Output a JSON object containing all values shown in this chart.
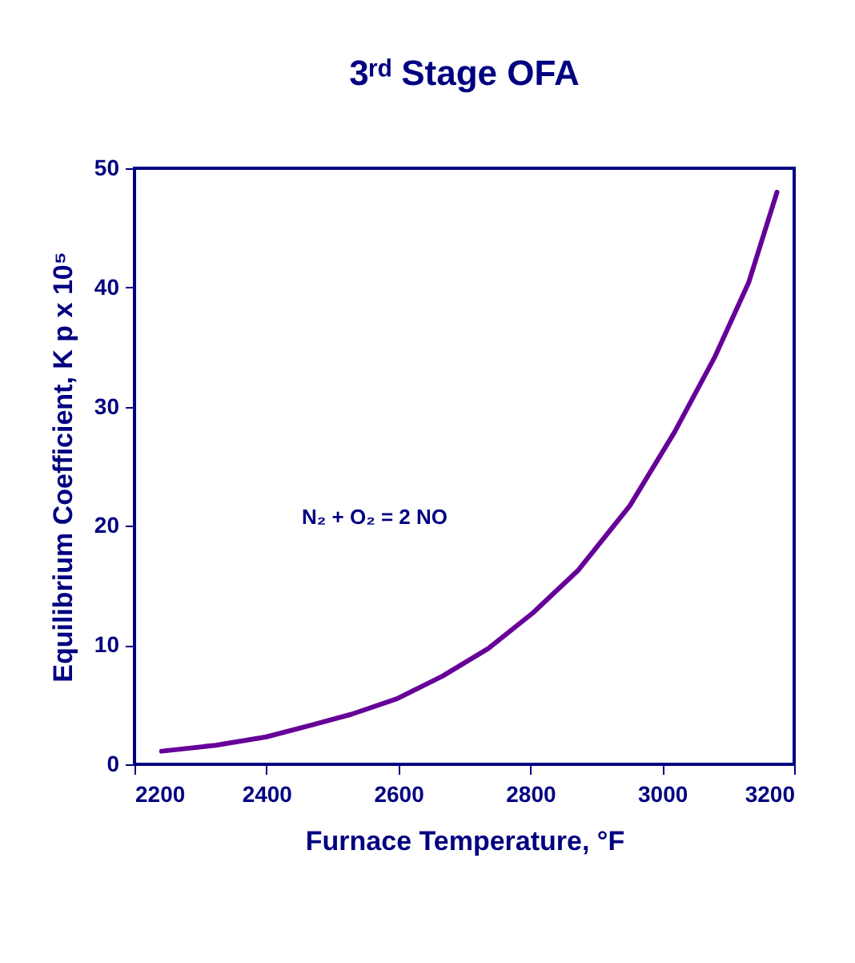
{
  "chart_data": {
    "type": "line",
    "title": "3ʳᵈ Stage OFA",
    "xlabel": "Furnace Temperature, °F",
    "ylabel": "Equilibrium Coefficient, K p x 10⁵",
    "annotations": [
      "N₂ + O₂ = 2 NO"
    ],
    "x": [
      2241,
      2323,
      2400,
      2469,
      2529,
      2598,
      2667,
      2736,
      2804,
      2873,
      2951,
      3019,
      3080,
      3131,
      3174
    ],
    "series": [
      {
        "color": "#660099",
        "values": [
          1.1,
          1.6,
          2.3,
          3.3,
          4.2,
          5.5,
          7.4,
          9.7,
          12.7,
          16.3,
          21.7,
          27.9,
          34.2,
          40.4,
          48.0
        ]
      }
    ],
    "xlim": [
      2200,
      3200
    ],
    "xticks": [
      2200,
      2400,
      2600,
      2800,
      3000,
      3200
    ],
    "ylim": [
      0,
      50
    ],
    "yticks": [
      0,
      10,
      20,
      30,
      40,
      50
    ],
    "grid": false,
    "marker": "none",
    "line_style": "solid"
  }
}
